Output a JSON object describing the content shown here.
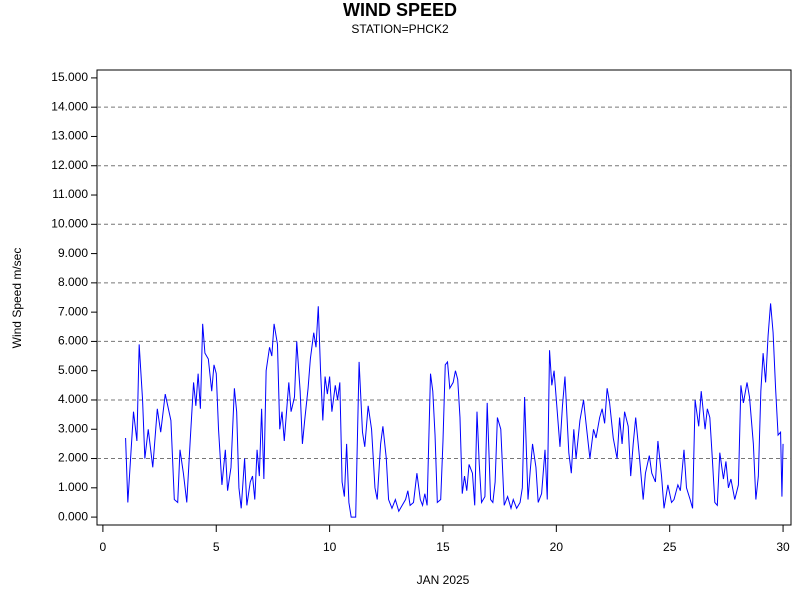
{
  "chart_data": {
    "type": "line",
    "title": "WIND SPEED",
    "subtitle": "STATION=PHCK2",
    "x_label": "JAN 2025",
    "y_label": "Wind Speed m/sec",
    "xlim": [
      -0.26,
      30.35
    ],
    "ylim": [
      -0.27,
      15.27
    ],
    "xticks": [
      0,
      5,
      10,
      15,
      20,
      25,
      30
    ],
    "yticks": [
      {
        "value": 0,
        "label": "0.000"
      },
      {
        "value": 1,
        "label": "1.000"
      },
      {
        "value": 2,
        "label": "2.000"
      },
      {
        "value": 3,
        "label": "3.000"
      },
      {
        "value": 4,
        "label": "4.000"
      },
      {
        "value": 5,
        "label": "5.000"
      },
      {
        "value": 6,
        "label": "6.000"
      },
      {
        "value": 7,
        "label": "7.000"
      },
      {
        "value": 8,
        "label": "8.000"
      },
      {
        "value": 9,
        "label": "9.000"
      },
      {
        "value": 10,
        "label": "10.000"
      },
      {
        "value": 11,
        "label": "11.000"
      },
      {
        "value": 12,
        "label": "12.000"
      },
      {
        "value": 13,
        "label": "13.000"
      },
      {
        "value": 14,
        "label": "14.000"
      },
      {
        "value": 15,
        "label": "15.000"
      }
    ],
    "ygrid": [
      2,
      4,
      6,
      8,
      10,
      12,
      14
    ],
    "series": [
      {
        "color": "#0000ff",
        "x": [
          1.0,
          1.1,
          1.35,
          1.5,
          1.6,
          1.75,
          1.85,
          2.0,
          2.2,
          2.4,
          2.55,
          2.75,
          3.0,
          3.15,
          3.3,
          3.4,
          3.55,
          3.7,
          3.85,
          4.0,
          4.1,
          4.2,
          4.3,
          4.4,
          4.5,
          4.65,
          4.8,
          4.9,
          5.0,
          5.1,
          5.25,
          5.4,
          5.5,
          5.65,
          5.8,
          5.9,
          6.0,
          6.1,
          6.25,
          6.35,
          6.5,
          6.6,
          6.7,
          6.8,
          6.9,
          7.0,
          7.1,
          7.2,
          7.35,
          7.45,
          7.55,
          7.7,
          7.8,
          7.9,
          8.0,
          8.1,
          8.2,
          8.3,
          8.45,
          8.55,
          8.7,
          8.8,
          8.9,
          9.05,
          9.15,
          9.3,
          9.4,
          9.5,
          9.6,
          9.7,
          9.8,
          9.9,
          10.0,
          10.1,
          10.25,
          10.35,
          10.45,
          10.55,
          10.65,
          10.75,
          10.85,
          10.95,
          11.15,
          11.3,
          11.45,
          11.55,
          11.7,
          11.85,
          12.0,
          12.1,
          12.25,
          12.35,
          12.5,
          12.6,
          12.75,
          12.9,
          13.05,
          13.2,
          13.35,
          13.45,
          13.55,
          13.7,
          13.85,
          14.0,
          14.1,
          14.2,
          14.3,
          14.45,
          14.55,
          14.65,
          14.75,
          14.9,
          15.0,
          15.1,
          15.2,
          15.3,
          15.45,
          15.55,
          15.65,
          15.75,
          15.85,
          15.95,
          16.05,
          16.15,
          16.3,
          16.4,
          16.5,
          16.6,
          16.7,
          16.85,
          16.95,
          17.1,
          17.2,
          17.3,
          17.4,
          17.55,
          17.7,
          17.85,
          18.0,
          18.1,
          18.25,
          18.4,
          18.5,
          18.6,
          18.75,
          18.85,
          18.95,
          19.1,
          19.2,
          19.35,
          19.5,
          19.6,
          19.7,
          19.8,
          19.9,
          20.0,
          20.16,
          20.27,
          20.38,
          20.55,
          20.66,
          20.77,
          20.87,
          21.04,
          21.2,
          21.31,
          21.48,
          21.64,
          21.75,
          21.91,
          22.02,
          22.13,
          22.24,
          22.35,
          22.51,
          22.68,
          22.79,
          22.9,
          23.01,
          23.17,
          23.28,
          23.39,
          23.5,
          23.66,
          23.83,
          23.93,
          24.1,
          24.21,
          24.37,
          24.48,
          24.64,
          24.75,
          24.92,
          25.08,
          25.19,
          25.36,
          25.47,
          25.63,
          25.74,
          25.9,
          26.01,
          26.12,
          26.28,
          26.39,
          26.56,
          26.66,
          26.77,
          26.88,
          26.99,
          27.1,
          27.21,
          27.37,
          27.48,
          27.59,
          27.7,
          27.87,
          28.03,
          28.14,
          28.25,
          28.41,
          28.52,
          28.69,
          28.8,
          28.91,
          29.02,
          29.12,
          29.23,
          29.34,
          29.45,
          29.56,
          29.67,
          29.78,
          29.89,
          29.95,
          30.0
        ],
        "values": [
          2.7,
          0.5,
          3.6,
          2.6,
          5.9,
          4.0,
          2.0,
          3.0,
          1.7,
          3.7,
          2.9,
          4.2,
          3.3,
          0.6,
          0.5,
          2.3,
          1.5,
          0.5,
          2.6,
          4.6,
          3.8,
          4.9,
          3.7,
          6.6,
          5.6,
          5.4,
          4.3,
          5.2,
          4.9,
          3.0,
          1.1,
          2.3,
          0.9,
          1.7,
          4.4,
          3.6,
          1.0,
          0.3,
          2.0,
          0.4,
          1.2,
          1.4,
          0.6,
          2.3,
          1.4,
          3.7,
          1.3,
          5.0,
          5.8,
          5.5,
          6.6,
          5.9,
          3.0,
          3.6,
          2.6,
          3.6,
          4.6,
          3.6,
          4.1,
          6.0,
          4.3,
          2.5,
          3.3,
          4.4,
          5.4,
          6.3,
          5.8,
          7.2,
          5.0,
          3.3,
          4.8,
          4.2,
          4.8,
          3.6,
          4.5,
          4.0,
          4.6,
          1.2,
          0.7,
          2.5,
          0.5,
          0.0,
          0.0,
          5.3,
          2.9,
          2.4,
          3.8,
          3.0,
          1.0,
          0.6,
          2.5,
          3.1,
          2.0,
          0.6,
          0.3,
          0.6,
          0.2,
          0.4,
          0.6,
          0.9,
          0.4,
          0.5,
          1.5,
          0.6,
          0.4,
          0.8,
          0.4,
          4.9,
          4.3,
          2.8,
          0.5,
          0.6,
          2.6,
          5.2,
          5.3,
          4.4,
          4.6,
          5.0,
          4.7,
          3.4,
          0.8,
          1.4,
          0.9,
          1.8,
          1.5,
          0.4,
          3.6,
          1.8,
          0.5,
          0.7,
          3.9,
          0.6,
          0.5,
          1.2,
          3.4,
          3.0,
          0.4,
          0.7,
          0.3,
          0.6,
          0.3,
          0.5,
          1.0,
          4.1,
          0.6,
          1.6,
          2.5,
          1.7,
          0.5,
          0.8,
          2.3,
          0.6,
          5.7,
          4.5,
          5.0,
          4.0,
          2.4,
          3.8,
          4.8,
          2.2,
          1.5,
          3.0,
          2.0,
          3.3,
          4.0,
          3.2,
          2.0,
          3.0,
          2.7,
          3.4,
          3.7,
          3.2,
          4.4,
          3.9,
          2.7,
          2.0,
          3.4,
          2.5,
          3.6,
          3.1,
          1.4,
          2.5,
          3.4,
          2.1,
          0.6,
          1.5,
          2.1,
          1.5,
          1.2,
          2.6,
          1.4,
          0.3,
          1.1,
          0.5,
          0.6,
          1.1,
          0.9,
          2.3,
          1.0,
          0.6,
          0.3,
          4.0,
          3.1,
          4.3,
          3.0,
          3.7,
          3.4,
          2.0,
          0.5,
          0.4,
          2.2,
          1.3,
          1.9,
          1.0,
          1.3,
          0.6,
          1.1,
          4.5,
          3.9,
          4.6,
          4.1,
          2.5,
          0.6,
          1.4,
          4.3,
          5.6,
          4.6,
          6.2,
          7.3,
          6.3,
          4.4,
          2.8,
          2.9,
          0.7,
          2.5
        ]
      }
    ]
  }
}
